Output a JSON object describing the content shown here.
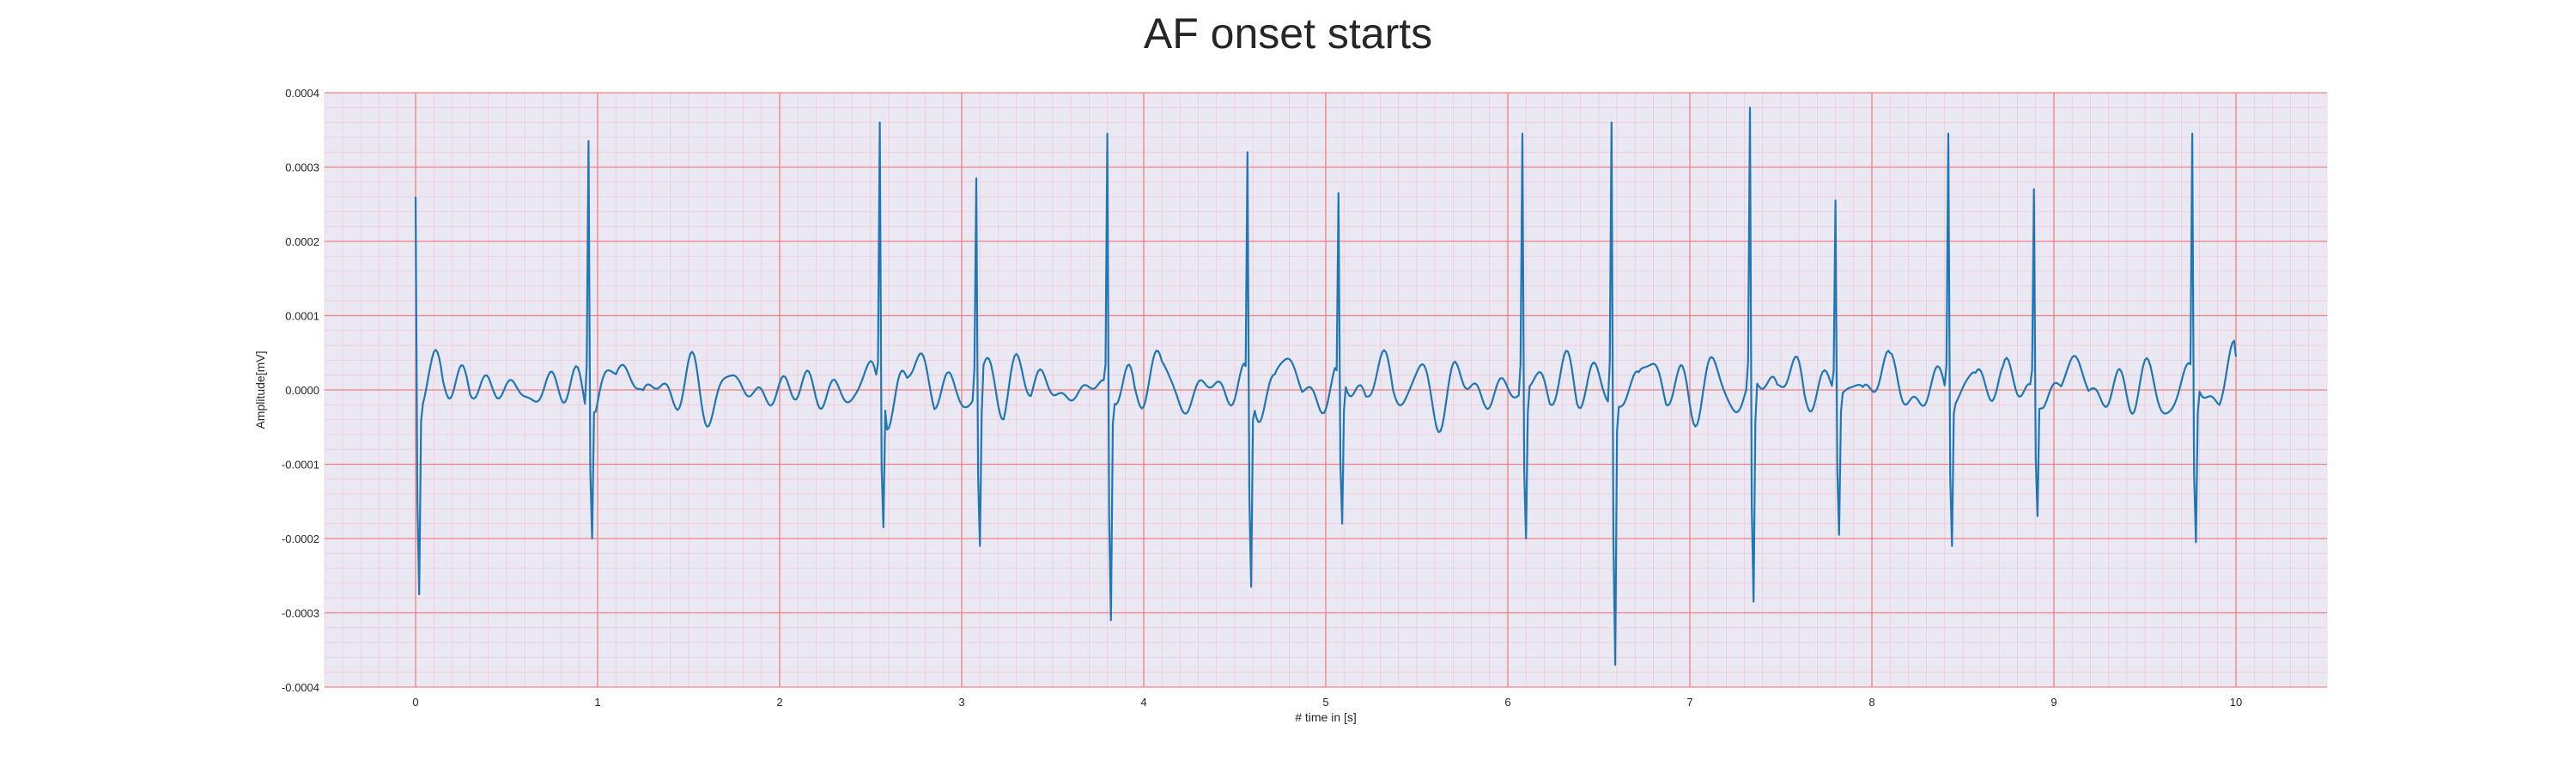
{
  "chart_data": {
    "type": "line",
    "title": "AF onset starts",
    "xlabel": "# time in [s]",
    "ylabel": "Amplitude[mV]",
    "xlim": [
      -0.5,
      10.5
    ],
    "ylim": [
      -0.0004,
      0.0004
    ],
    "xticks": [
      0,
      1,
      2,
      3,
      4,
      5,
      6,
      7,
      8,
      9,
      10
    ],
    "yticks": [
      -0.0004,
      -0.0003,
      -0.0002,
      -0.0001,
      0.0,
      0.0001,
      0.0002,
      0.0003,
      0.0004
    ],
    "xtick_labels": [
      "0",
      "1",
      "2",
      "3",
      "4",
      "5",
      "6",
      "7",
      "8",
      "9",
      "10"
    ],
    "ytick_labels": [
      "-0.0004",
      "-0.0003",
      "-0.0002",
      "-0.0001",
      "0.0000",
      "0.0001",
      "0.0002",
      "0.0003",
      "0.0004"
    ],
    "grid": true,
    "minor_grid": true,
    "colors": {
      "line": "#1f77b4",
      "plot_background": "#eae8f2",
      "major_grid": "#f08080",
      "minor_grid": "#f4b8c4"
    },
    "series": [
      {
        "beats": [
          {
            "t": 0.0,
            "r": 0.00026,
            "s": -0.000275
          },
          {
            "t": 0.95,
            "r": 0.000335,
            "s": -0.0002
          },
          {
            "t": 2.55,
            "r": 0.00036,
            "s": -0.000185
          },
          {
            "t": 3.08,
            "r": 0.000285,
            "s": -0.00021
          },
          {
            "t": 3.8,
            "r": 0.000345,
            "s": -0.00031
          },
          {
            "t": 4.57,
            "r": 0.00032,
            "s": -0.000265
          },
          {
            "t": 5.07,
            "r": 0.000265,
            "s": -0.00018
          },
          {
            "t": 6.08,
            "r": 0.000345,
            "s": -0.0002
          },
          {
            "t": 6.57,
            "r": 0.00036,
            "s": -0.00037
          },
          {
            "t": 7.33,
            "r": 0.00038,
            "s": -0.000285
          },
          {
            "t": 7.8,
            "r": 0.000255,
            "s": -0.000195
          },
          {
            "t": 8.42,
            "r": 0.000345,
            "s": -0.00021
          },
          {
            "t": 8.89,
            "r": 0.00027,
            "s": -0.00017
          },
          {
            "t": 9.76,
            "r": 0.000345,
            "s": -0.000205
          }
        ],
        "x_end": 10.0,
        "y_end": 4.5e-05
      }
    ]
  }
}
